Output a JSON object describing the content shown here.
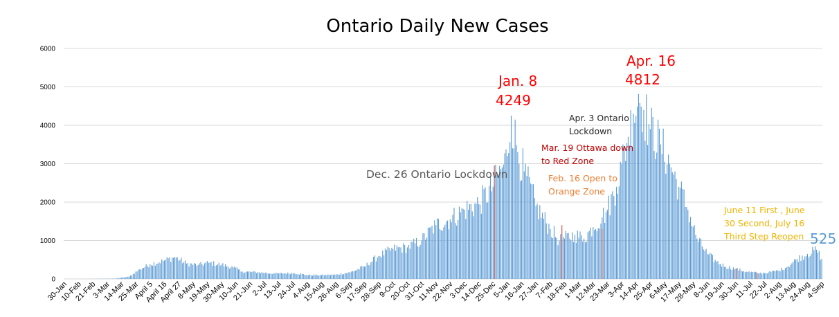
{
  "chart_data": {
    "type": "bar",
    "title": "Ontario Daily New Cases",
    "xlabel": "",
    "ylabel": "",
    "ylim": [
      0,
      6000
    ],
    "y_ticks": [
      "0",
      "1000",
      "2000",
      "3000",
      "4000",
      "5000",
      "6000"
    ],
    "grid": true,
    "legend": "none",
    "bar_color": "#5b9bd5",
    "x_tick_labels": [
      "30-Jan",
      "10-Feb",
      "21-Feb",
      "3-Mar",
      "14-Mar",
      "25-Mar",
      "April 5",
      "April 16",
      "April 27",
      "8-May",
      "19-May",
      "30-May",
      "10-Jun",
      "21-Jun",
      "2-Jul",
      "13-Jul",
      "24-Jul",
      "4-Aug",
      "15-Aug",
      "26-Aug",
      "6-Sep",
      "17-Sep",
      "28-Sep",
      "9-Oct",
      "20-Oct",
      "31-Oct",
      "11-Nov",
      "22-Nov",
      "3-Dec",
      "14-Dec",
      "25-Dec",
      "5-Jan",
      "16-Jan",
      "27-Jan",
      "7-Feb",
      "18-Feb",
      "1-Mar",
      "12-Mar",
      "23-Mar",
      "3-Apr",
      "14-Apr",
      "25-Apr",
      "6-May",
      "17-May",
      "28-May",
      "8-Jun",
      "19-Jun",
      "30-Jun",
      "11-Jul",
      "22-Jul",
      "2-Aug",
      "13-Aug",
      "24-Aug",
      "4-Sep"
    ],
    "anchors": [
      [
        "2020-01-30",
        0
      ],
      [
        "2020-02-20",
        2
      ],
      [
        "2020-03-01",
        5
      ],
      [
        "2020-03-10",
        10
      ],
      [
        "2020-03-20",
        60
      ],
      [
        "2020-03-28",
        250
      ],
      [
        "2020-04-05",
        380
      ],
      [
        "2020-04-16",
        480
      ],
      [
        "2020-04-24",
        570
      ],
      [
        "2020-05-03",
        400
      ],
      [
        "2020-05-12",
        360
      ],
      [
        "2020-05-20",
        420
      ],
      [
        "2020-05-30",
        370
      ],
      [
        "2020-06-08",
        300
      ],
      [
        "2020-06-15",
        190
      ],
      [
        "2020-06-28",
        170
      ],
      [
        "2020-07-10",
        140
      ],
      [
        "2020-07-25",
        150
      ],
      [
        "2020-08-05",
        100
      ],
      [
        "2020-08-15",
        100
      ],
      [
        "2020-08-26",
        110
      ],
      [
        "2020-09-06",
        170
      ],
      [
        "2020-09-17",
        320
      ],
      [
        "2020-09-28",
        600
      ],
      [
        "2020-10-09",
        780
      ],
      [
        "2020-10-20",
        820
      ],
      [
        "2020-10-31",
        1000
      ],
      [
        "2020-11-11",
        1400
      ],
      [
        "2020-11-22",
        1550
      ],
      [
        "2020-12-03",
        1800
      ],
      [
        "2020-12-14",
        1950
      ],
      [
        "2020-12-25",
        2400
      ],
      [
        "2021-01-01",
        2900
      ],
      [
        "2021-01-05",
        3200
      ],
      [
        "2021-01-08",
        4249
      ],
      [
        "2021-01-13",
        3300
      ],
      [
        "2021-01-18",
        2800
      ],
      [
        "2021-01-27",
        1900
      ],
      [
        "2021-02-07",
        1300
      ],
      [
        "2021-02-14",
        1000
      ],
      [
        "2021-02-18",
        1050
      ],
      [
        "2021-02-26",
        1150
      ],
      [
        "2021-03-05",
        1050
      ],
      [
        "2021-03-12",
        1350
      ],
      [
        "2021-03-19",
        1600
      ],
      [
        "2021-03-23",
        1800
      ],
      [
        "2021-03-30",
        2400
      ],
      [
        "2021-04-03",
        3000
      ],
      [
        "2021-04-08",
        3700
      ],
      [
        "2021-04-12",
        4300
      ],
      [
        "2021-04-16",
        4812
      ],
      [
        "2021-04-20",
        4400
      ],
      [
        "2021-04-25",
        3900
      ],
      [
        "2021-05-03",
        3500
      ],
      [
        "2021-05-10",
        3000
      ],
      [
        "2021-05-17",
        2400
      ],
      [
        "2021-05-24",
        1800
      ],
      [
        "2021-05-31",
        1050
      ],
      [
        "2021-06-08",
        650
      ],
      [
        "2021-06-15",
        450
      ],
      [
        "2021-06-22",
        320
      ],
      [
        "2021-06-30",
        260
      ],
      [
        "2021-07-08",
        190
      ],
      [
        "2021-07-18",
        150
      ],
      [
        "2021-07-25",
        170
      ],
      [
        "2021-08-02",
        220
      ],
      [
        "2021-08-09",
        330
      ],
      [
        "2021-08-16",
        520
      ],
      [
        "2021-08-24",
        650
      ],
      [
        "2021-08-31",
        760
      ],
      [
        "2021-09-04",
        525
      ]
    ],
    "annotations": [
      {
        "key": "peak1_date",
        "text": "Jan. 8"
      },
      {
        "key": "peak1_value",
        "text": "4249"
      },
      {
        "key": "peak2_date",
        "text": "Apr. 16"
      },
      {
        "key": "peak2_value",
        "text": "4812"
      },
      {
        "key": "last_value",
        "text": "525"
      }
    ]
  },
  "notes": {
    "dec26": "Dec. 26 Ontario Lockdown",
    "apr3_line1": "Apr. 3 Ontario",
    "apr3_line2": "Lockdown",
    "mar19_line1": "Mar. 19 Ottawa down",
    "mar19_line2": "to Red Zone",
    "feb16_line1": "Feb. 16 Open to",
    "feb16_line2": "Orange Zone",
    "june_line1": "June 11 First , June",
    "june_line2": "30 Second, July 16",
    "june_line3": "Third Step Reopen"
  },
  "colors": {
    "red": "#ff0000",
    "dark_red": "#c00000",
    "gray": "#595959",
    "dark_gray": "#262626",
    "orange": "#ed7d31",
    "gold": "#f0b400",
    "blue_label": "#5b9bd5",
    "marker_line": "#c0504d"
  }
}
